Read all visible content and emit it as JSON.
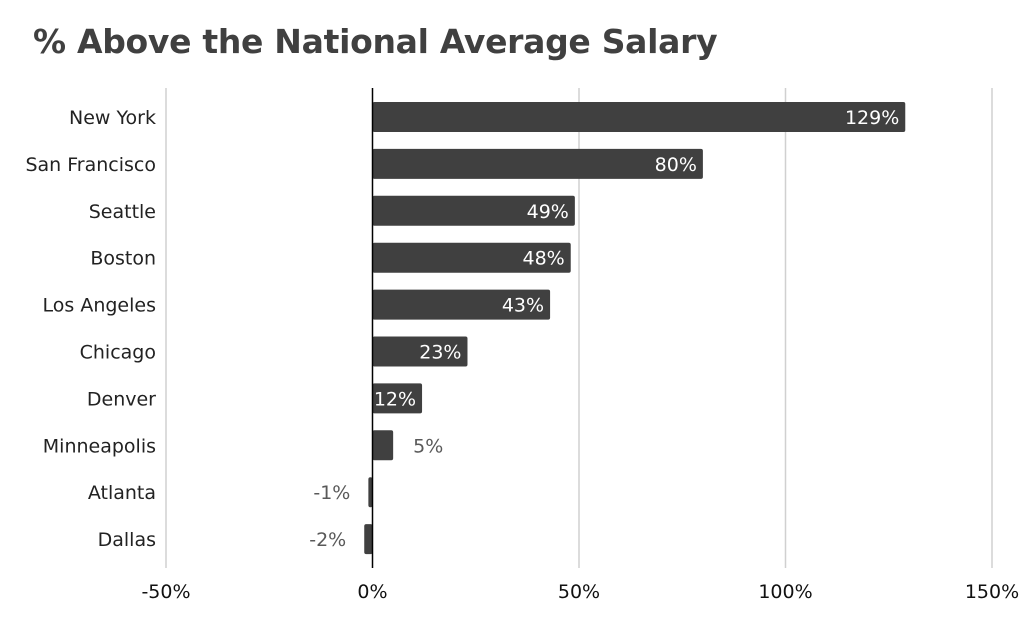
{
  "chart_data": {
    "type": "bar",
    "orientation": "horizontal",
    "title": "% Above the National Average Salary",
    "categories": [
      "New York",
      "San Francisco",
      "Seattle",
      "Boston",
      "Los Angeles",
      "Chicago",
      "Denver",
      "Minneapolis",
      "Atlanta",
      "Dallas"
    ],
    "values": [
      129,
      80,
      49,
      48,
      43,
      23,
      12,
      5,
      -1,
      -2
    ],
    "value_labels": [
      "129%",
      "80%",
      "49%",
      "48%",
      "43%",
      "23%",
      "12%",
      "5%",
      "-1%",
      "-2%"
    ],
    "xlim": [
      -50,
      150
    ],
    "xticks": [
      -50,
      0,
      50,
      100,
      150
    ],
    "xtick_labels": [
      "-50%",
      "0%",
      "50%",
      "100%",
      "150%"
    ],
    "grid": "vertical",
    "legend": "none",
    "xlabel": "",
    "ylabel": "",
    "colors": {
      "bar": "#404040",
      "grid": "#d0d0d0",
      "axis": "#000000",
      "label_inside": "#ffffff",
      "label_outside": "#595959"
    }
  }
}
